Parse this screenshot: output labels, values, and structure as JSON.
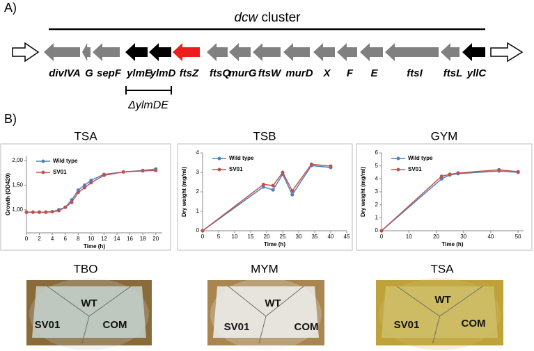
{
  "panel_a": {
    "label": "A)",
    "cluster_prefix": "dcw",
    "cluster_suffix": " cluster",
    "genes": [
      {
        "label": "divIVA",
        "color": "#808080"
      },
      {
        "label": "G",
        "color": "#808080"
      },
      {
        "label": "sepF",
        "color": "#808080"
      },
      {
        "label": "ylmE",
        "color": "#000000"
      },
      {
        "label": "ylmD",
        "color": "#000000"
      },
      {
        "label": "ftsZ",
        "color": "#ee1c1c"
      },
      {
        "label": "ftsQ",
        "color": "#808080"
      },
      {
        "label": "murG",
        "color": "#808080"
      },
      {
        "label": "ftsW",
        "color": "#808080"
      },
      {
        "label": "murD",
        "color": "#808080"
      },
      {
        "label": "X",
        "color": "#808080"
      },
      {
        "label": "F",
        "color": "#808080"
      },
      {
        "label": "E",
        "color": "#808080"
      },
      {
        "label": "ftsI",
        "color": "#808080"
      },
      {
        "label": "ftsL",
        "color": "#808080"
      },
      {
        "label": "yllC",
        "color": "#000000"
      }
    ],
    "deletion_label": "ΔylmDE"
  },
  "panel_b": {
    "label": "B)"
  },
  "chart_data": [
    {
      "type": "line",
      "title": "TSA",
      "xlabel": "Time (h)",
      "ylabel": "Growth (OD420)",
      "x": [
        0,
        1,
        2,
        3,
        4,
        5,
        6,
        7,
        8,
        9,
        10,
        12,
        15,
        18,
        20
      ],
      "series": [
        {
          "name": "Wild type",
          "color": "#4f81bd",
          "values": [
            0.95,
            0.95,
            0.95,
            0.95,
            0.96,
            1.0,
            1.05,
            1.2,
            1.4,
            1.5,
            1.6,
            1.72,
            1.77,
            1.8,
            1.83
          ]
        },
        {
          "name": "SV01",
          "color": "#c0504d",
          "values": [
            0.95,
            0.95,
            0.95,
            0.95,
            0.96,
            0.98,
            1.05,
            1.15,
            1.35,
            1.45,
            1.55,
            1.7,
            1.77,
            1.79,
            1.8
          ]
        }
      ],
      "xlim": [
        0,
        21
      ],
      "xticks": [
        0,
        2,
        4,
        6,
        8,
        10,
        12,
        14,
        16,
        18,
        20
      ],
      "ylim": [
        0.53,
        2.1
      ],
      "yticks": [
        {
          "value": 1,
          "label": "1,00"
        },
        {
          "value": 1.5,
          "label": "1,50"
        },
        {
          "value": 2,
          "label": "2,00"
        }
      ],
      "legend": "upper left"
    },
    {
      "type": "line",
      "title": "TSB",
      "xlabel": "Time (h)",
      "ylabel": "Dry weight (mg/ml)",
      "x": [
        0,
        19,
        22,
        25,
        28,
        34,
        40
      ],
      "series": [
        {
          "name": "Wild type",
          "color": "#4f81bd",
          "values": [
            0,
            2.25,
            2.1,
            2.9,
            1.85,
            3.35,
            3.25
          ]
        },
        {
          "name": "SV01",
          "color": "#c0504d",
          "values": [
            0,
            2.38,
            2.32,
            3.0,
            2.05,
            3.42,
            3.32
          ]
        }
      ],
      "xlim": [
        0,
        45
      ],
      "xticks": [
        0,
        5,
        10,
        15,
        20,
        25,
        30,
        35,
        40,
        45
      ],
      "ylim": [
        0,
        4
      ],
      "yticks": [
        0,
        1,
        2,
        3,
        4
      ],
      "legend": "upper left"
    },
    {
      "type": "line",
      "title": "GYM",
      "xlabel": "Time (h)",
      "ylabel": "Dry weight (mg/ml)",
      "x": [
        0,
        22,
        25,
        28,
        43,
        50
      ],
      "series": [
        {
          "name": "Wild type",
          "color": "#4f81bd",
          "values": [
            0,
            4.0,
            4.3,
            4.4,
            4.6,
            4.5
          ]
        },
        {
          "name": "SV01",
          "color": "#c0504d",
          "values": [
            0,
            4.2,
            4.35,
            4.45,
            4.7,
            4.55
          ]
        }
      ],
      "xlim": [
        0,
        52
      ],
      "xticks": [
        0,
        10,
        20,
        30,
        40,
        50
      ],
      "ylim": [
        0,
        6
      ],
      "yticks": [
        0,
        1,
        2,
        3,
        4,
        5,
        6
      ],
      "legend": "upper left"
    }
  ],
  "plates": [
    {
      "title": "TBO",
      "labels": [
        "WT",
        "SV01",
        "COM"
      ]
    },
    {
      "title": "MYM",
      "labels": [
        "WT",
        "SV01",
        "COM"
      ]
    },
    {
      "title": "TSA",
      "labels": [
        "WT",
        "SV01",
        "COM"
      ]
    }
  ]
}
